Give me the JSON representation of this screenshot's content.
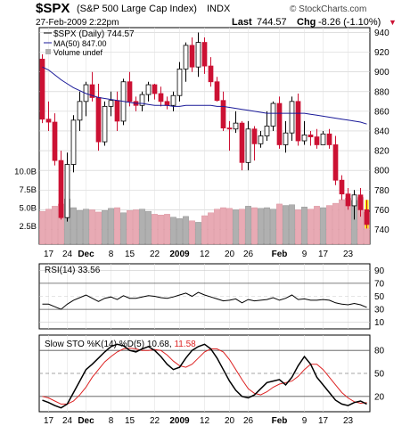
{
  "header": {
    "symbol": "$SPX",
    "name": "(S&P 500 Large Cap Index)",
    "exchange": "INDX",
    "date": "27-Feb-2009 2:22pm",
    "last_label": "Last",
    "last_value": "744.57",
    "chg_label": "Chg",
    "chg_value": "-8.26 (-1.10%)",
    "chg_arrow": "▼",
    "watermark": "© StockCharts.com"
  },
  "colors": {
    "up": "#000000",
    "down": "#cc1133",
    "ma": "#1a1a99",
    "stoch_d": "#dd2222",
    "grid": "#cccccc",
    "volume_up": "#b0b0b0",
    "volume_down": "#e8aab4",
    "highlight": "#ffee00"
  },
  "chart_data": [
    {
      "type": "candlestick",
      "legend": [
        "$SPX (Daily) 744.57",
        "MA(50) 847.00",
        "Volume undef"
      ],
      "ylim": [
        725,
        945
      ],
      "y_ticks": [
        740,
        760,
        780,
        800,
        820,
        840,
        860,
        880,
        900,
        920,
        940
      ],
      "volume_ticks": [
        "2.5B",
        "5.0B",
        "7.5B",
        "10.0B"
      ],
      "x_labels": [
        "17",
        "24",
        "Dec",
        "8",
        "15",
        "22",
        "2009",
        "12",
        "20",
        "26",
        "Feb",
        "9",
        "17",
        "23"
      ],
      "candles": [
        [
          913,
          918,
          848,
          852
        ],
        [
          852,
          870,
          840,
          849
        ],
        [
          849,
          858,
          805,
          810
        ],
        [
          810,
          820,
          750,
          752
        ],
        [
          752,
          818,
          748,
          806
        ],
        [
          806,
          856,
          798,
          851
        ],
        [
          851,
          880,
          840,
          870
        ],
        [
          870,
          890,
          855,
          887
        ],
        [
          887,
          900,
          870,
          874
        ],
        [
          874,
          888,
          820,
          829
        ],
        [
          829,
          870,
          825,
          865
        ],
        [
          865,
          880,
          855,
          871
        ],
        [
          871,
          880,
          840,
          850
        ],
        [
          850,
          893,
          846,
          890
        ],
        [
          890,
          900,
          865,
          870
        ],
        [
          870,
          875,
          860,
          866
        ],
        [
          866,
          880,
          860,
          877
        ],
        [
          877,
          890,
          870,
          887
        ],
        [
          887,
          888,
          872,
          878
        ],
        [
          878,
          885,
          865,
          870
        ],
        [
          870,
          875,
          862,
          866
        ],
        [
          866,
          880,
          860,
          876
        ],
        [
          876,
          910,
          870,
          903
        ],
        [
          903,
          930,
          890,
          927
        ],
        [
          927,
          935,
          900,
          905
        ],
        [
          905,
          940,
          895,
          930
        ],
        [
          930,
          935,
          898,
          906
        ],
        [
          906,
          915,
          885,
          890
        ],
        [
          890,
          895,
          870,
          871
        ],
        [
          871,
          880,
          840,
          843
        ],
        [
          843,
          850,
          820,
          842
        ],
        [
          842,
          860,
          838,
          848
        ],
        [
          848,
          850,
          800,
          808
        ],
        [
          808,
          850,
          800,
          842
        ],
        [
          842,
          845,
          810,
          827
        ],
        [
          827,
          840,
          823,
          835
        ],
        [
          835,
          860,
          830,
          845
        ],
        [
          845,
          870,
          840,
          868
        ],
        [
          868,
          875,
          822,
          826
        ],
        [
          826,
          850,
          818,
          838
        ],
        [
          838,
          875,
          830,
          870
        ],
        [
          870,
          878,
          825,
          830
        ],
        [
          830,
          850,
          826,
          836
        ],
        [
          836,
          840,
          825,
          834
        ],
        [
          834,
          842,
          822,
          826
        ],
        [
          826,
          840,
          828,
          837
        ],
        [
          837,
          842,
          822,
          826
        ],
        [
          826,
          835,
          785,
          790
        ],
        [
          790,
          795,
          770,
          776
        ],
        [
          776,
          782,
          760,
          764
        ],
        [
          764,
          780,
          750,
          775
        ],
        [
          775,
          782,
          753,
          760
        ],
        [
          760,
          770,
          741,
          745
        ]
      ],
      "ma50": [
        905,
        902,
        897,
        892,
        888,
        884,
        881,
        878,
        876,
        874,
        873,
        872,
        871,
        870,
        869,
        868,
        868,
        867,
        866,
        866,
        866,
        865,
        865,
        866,
        866,
        866,
        866,
        866,
        865,
        865,
        864,
        863,
        862,
        861,
        860,
        859,
        858,
        858,
        858,
        858,
        858,
        858,
        858,
        857,
        856,
        855,
        854,
        853,
        852,
        851,
        850,
        849,
        847
      ],
      "volume": [
        4.5,
        4.8,
        5.2,
        5.5,
        6.2,
        5.0,
        4.6,
        4.8,
        4.7,
        4.4,
        4.6,
        4.9,
        5.0,
        4.3,
        4.6,
        4.7,
        4.8,
        4.5,
        4.1,
        4.0,
        4.1,
        3.7,
        3.5,
        3.8,
        3.2,
        3.0,
        3.9,
        4.3,
        4.8,
        5.0,
        4.9,
        4.7,
        4.8,
        5.2,
        5.0,
        4.9,
        5.0,
        4.8,
        5.5,
        5.3,
        5.4,
        4.7,
        5.1,
        4.8,
        5.2,
        5.0,
        5.3,
        5.6,
        6.1,
        6.3,
        6.0,
        6.4,
        4.4
      ]
    },
    {
      "type": "line",
      "title": "RSI(14) 33.56",
      "ylim": [
        0,
        100
      ],
      "y_ticks": [
        10,
        30,
        50,
        70,
        90
      ],
      "values": [
        38,
        38,
        34,
        30,
        38,
        44,
        48,
        52,
        47,
        42,
        47,
        49,
        45,
        51,
        47,
        47,
        49,
        51,
        50,
        48,
        47,
        49,
        52,
        55,
        50,
        56,
        52,
        49,
        46,
        43,
        44,
        46,
        40,
        45,
        43,
        44,
        45,
        48,
        44,
        47,
        52,
        45,
        46,
        44,
        44,
        45,
        44,
        40,
        38,
        37,
        39,
        37,
        33
      ]
    },
    {
      "type": "line",
      "title": "Slow STO %K(14) %D(5) 10.68, 11.58",
      "title_main": "Slow STO %K(14) %D(5) 10.68, ",
      "title_d": "11.58",
      "ylim": [
        0,
        100
      ],
      "y_ticks": [
        20,
        50,
        80
      ],
      "series": [
        {
          "name": "%K(14)",
          "values": [
            15,
            12,
            8,
            5,
            10,
            25,
            40,
            55,
            62,
            70,
            78,
            85,
            88,
            86,
            80,
            78,
            82,
            85,
            80,
            72,
            62,
            55,
            58,
            70,
            80,
            85,
            88,
            82,
            70,
            55,
            40,
            28,
            20,
            18,
            22,
            30,
            38,
            40,
            42,
            35,
            45,
            60,
            72,
            62,
            45,
            35,
            25,
            15,
            10,
            8,
            12,
            14,
            10
          ]
        },
        {
          "name": "%D(5)",
          "values": [
            20,
            18,
            14,
            10,
            10,
            14,
            22,
            32,
            45,
            55,
            65,
            72,
            78,
            82,
            83,
            82,
            80,
            80,
            81,
            80,
            74,
            66,
            60,
            58,
            62,
            70,
            78,
            82,
            82,
            78,
            68,
            55,
            42,
            30,
            24,
            22,
            26,
            32,
            36,
            38,
            40,
            46,
            55,
            62,
            62,
            55,
            45,
            35,
            25,
            18,
            13,
            11,
            12
          ]
        }
      ]
    }
  ]
}
